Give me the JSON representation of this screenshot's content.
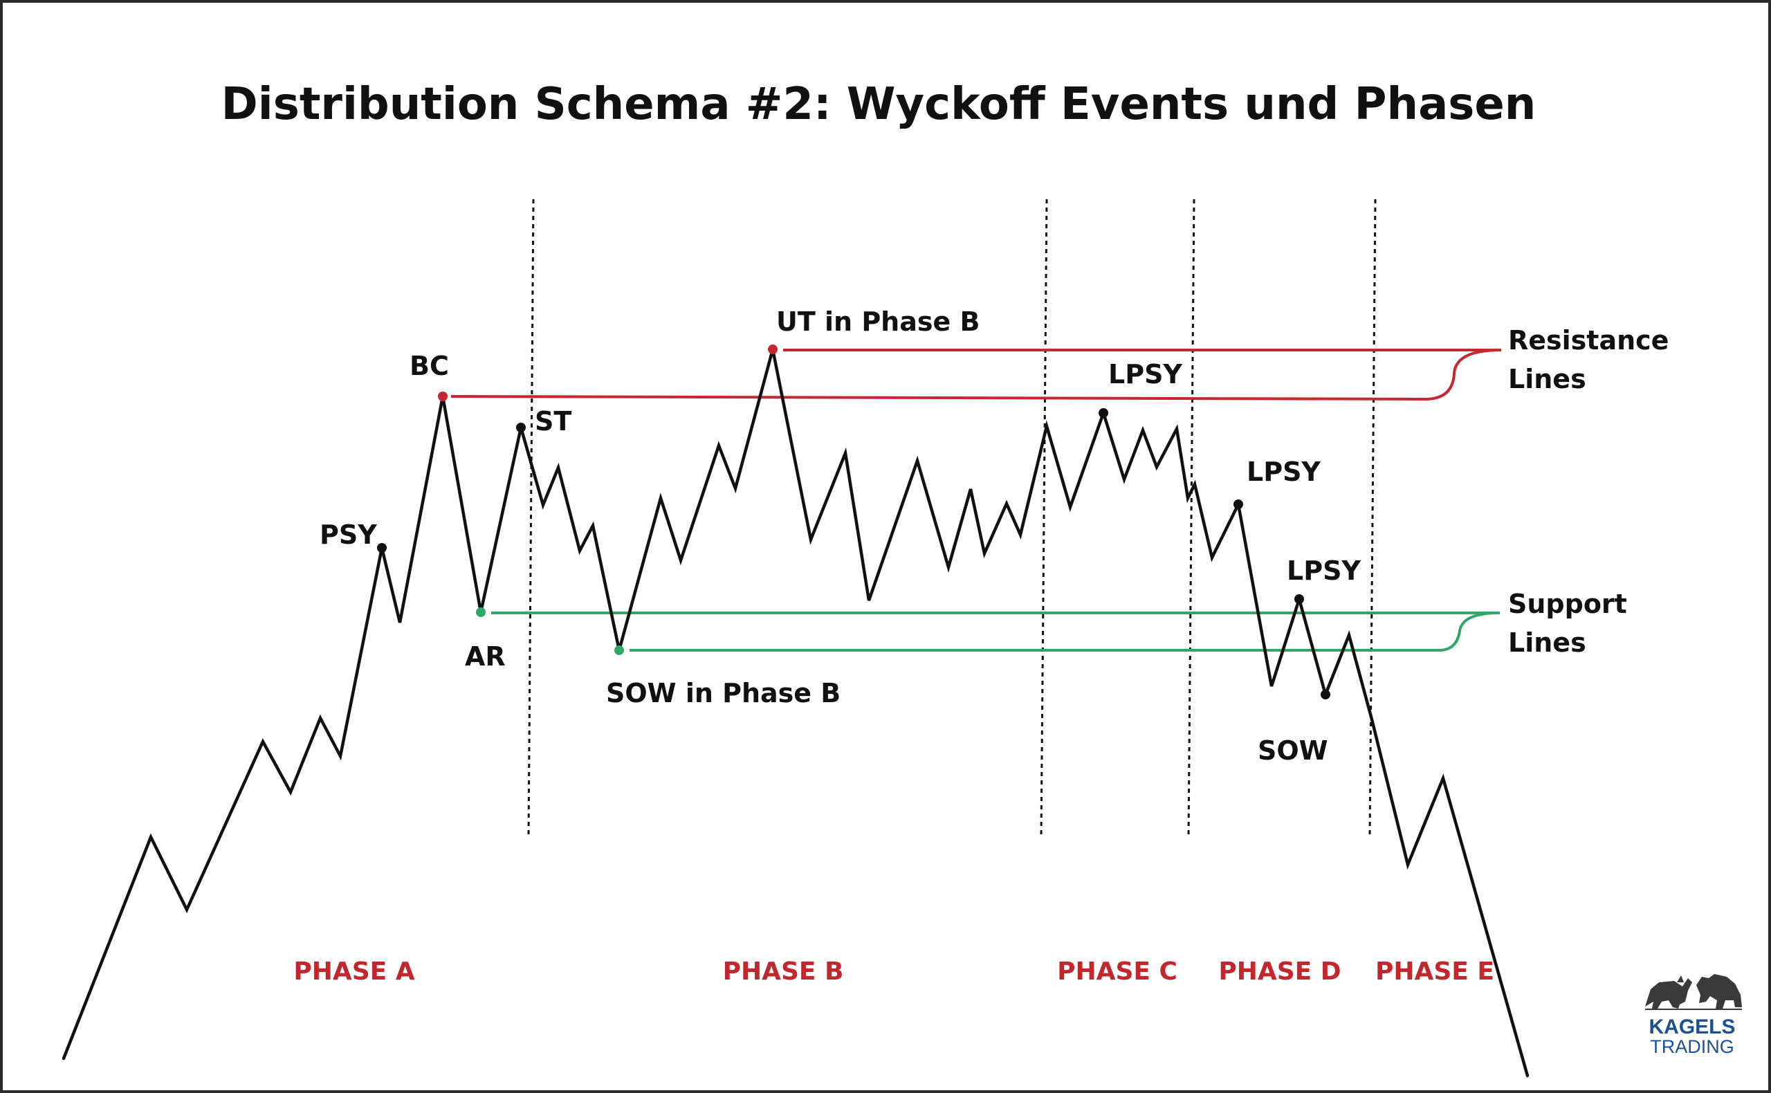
{
  "title": "Distribution Schema #2: Wyckoff Events und Phasen",
  "colors": {
    "price": "#111111",
    "resistance": "#c62832",
    "support": "#2fa866",
    "phase": "#c1272d",
    "logo": "#1f4f93"
  },
  "events": {
    "psy": "PSY",
    "bc": "BC",
    "ar": "AR",
    "st": "ST",
    "sow_b": "SOW in Phase B",
    "ut_b": "UT in Phase B",
    "lpsy_1": "LPSY",
    "lpsy_2": "LPSY",
    "lpsy_3": "LPSY",
    "sow": "SOW"
  },
  "side_labels": {
    "resistance_1": "Resistance",
    "resistance_2": "Lines",
    "support_1": "Support",
    "support_2": "Lines"
  },
  "phases": [
    "PHASE A",
    "PHASE B",
    "PHASE C",
    "PHASE D",
    "PHASE E"
  ],
  "logo": {
    "line1": "KAGELS",
    "line2": "TRADING",
    "icons": [
      "bull-icon",
      "bear-icon"
    ]
  }
}
